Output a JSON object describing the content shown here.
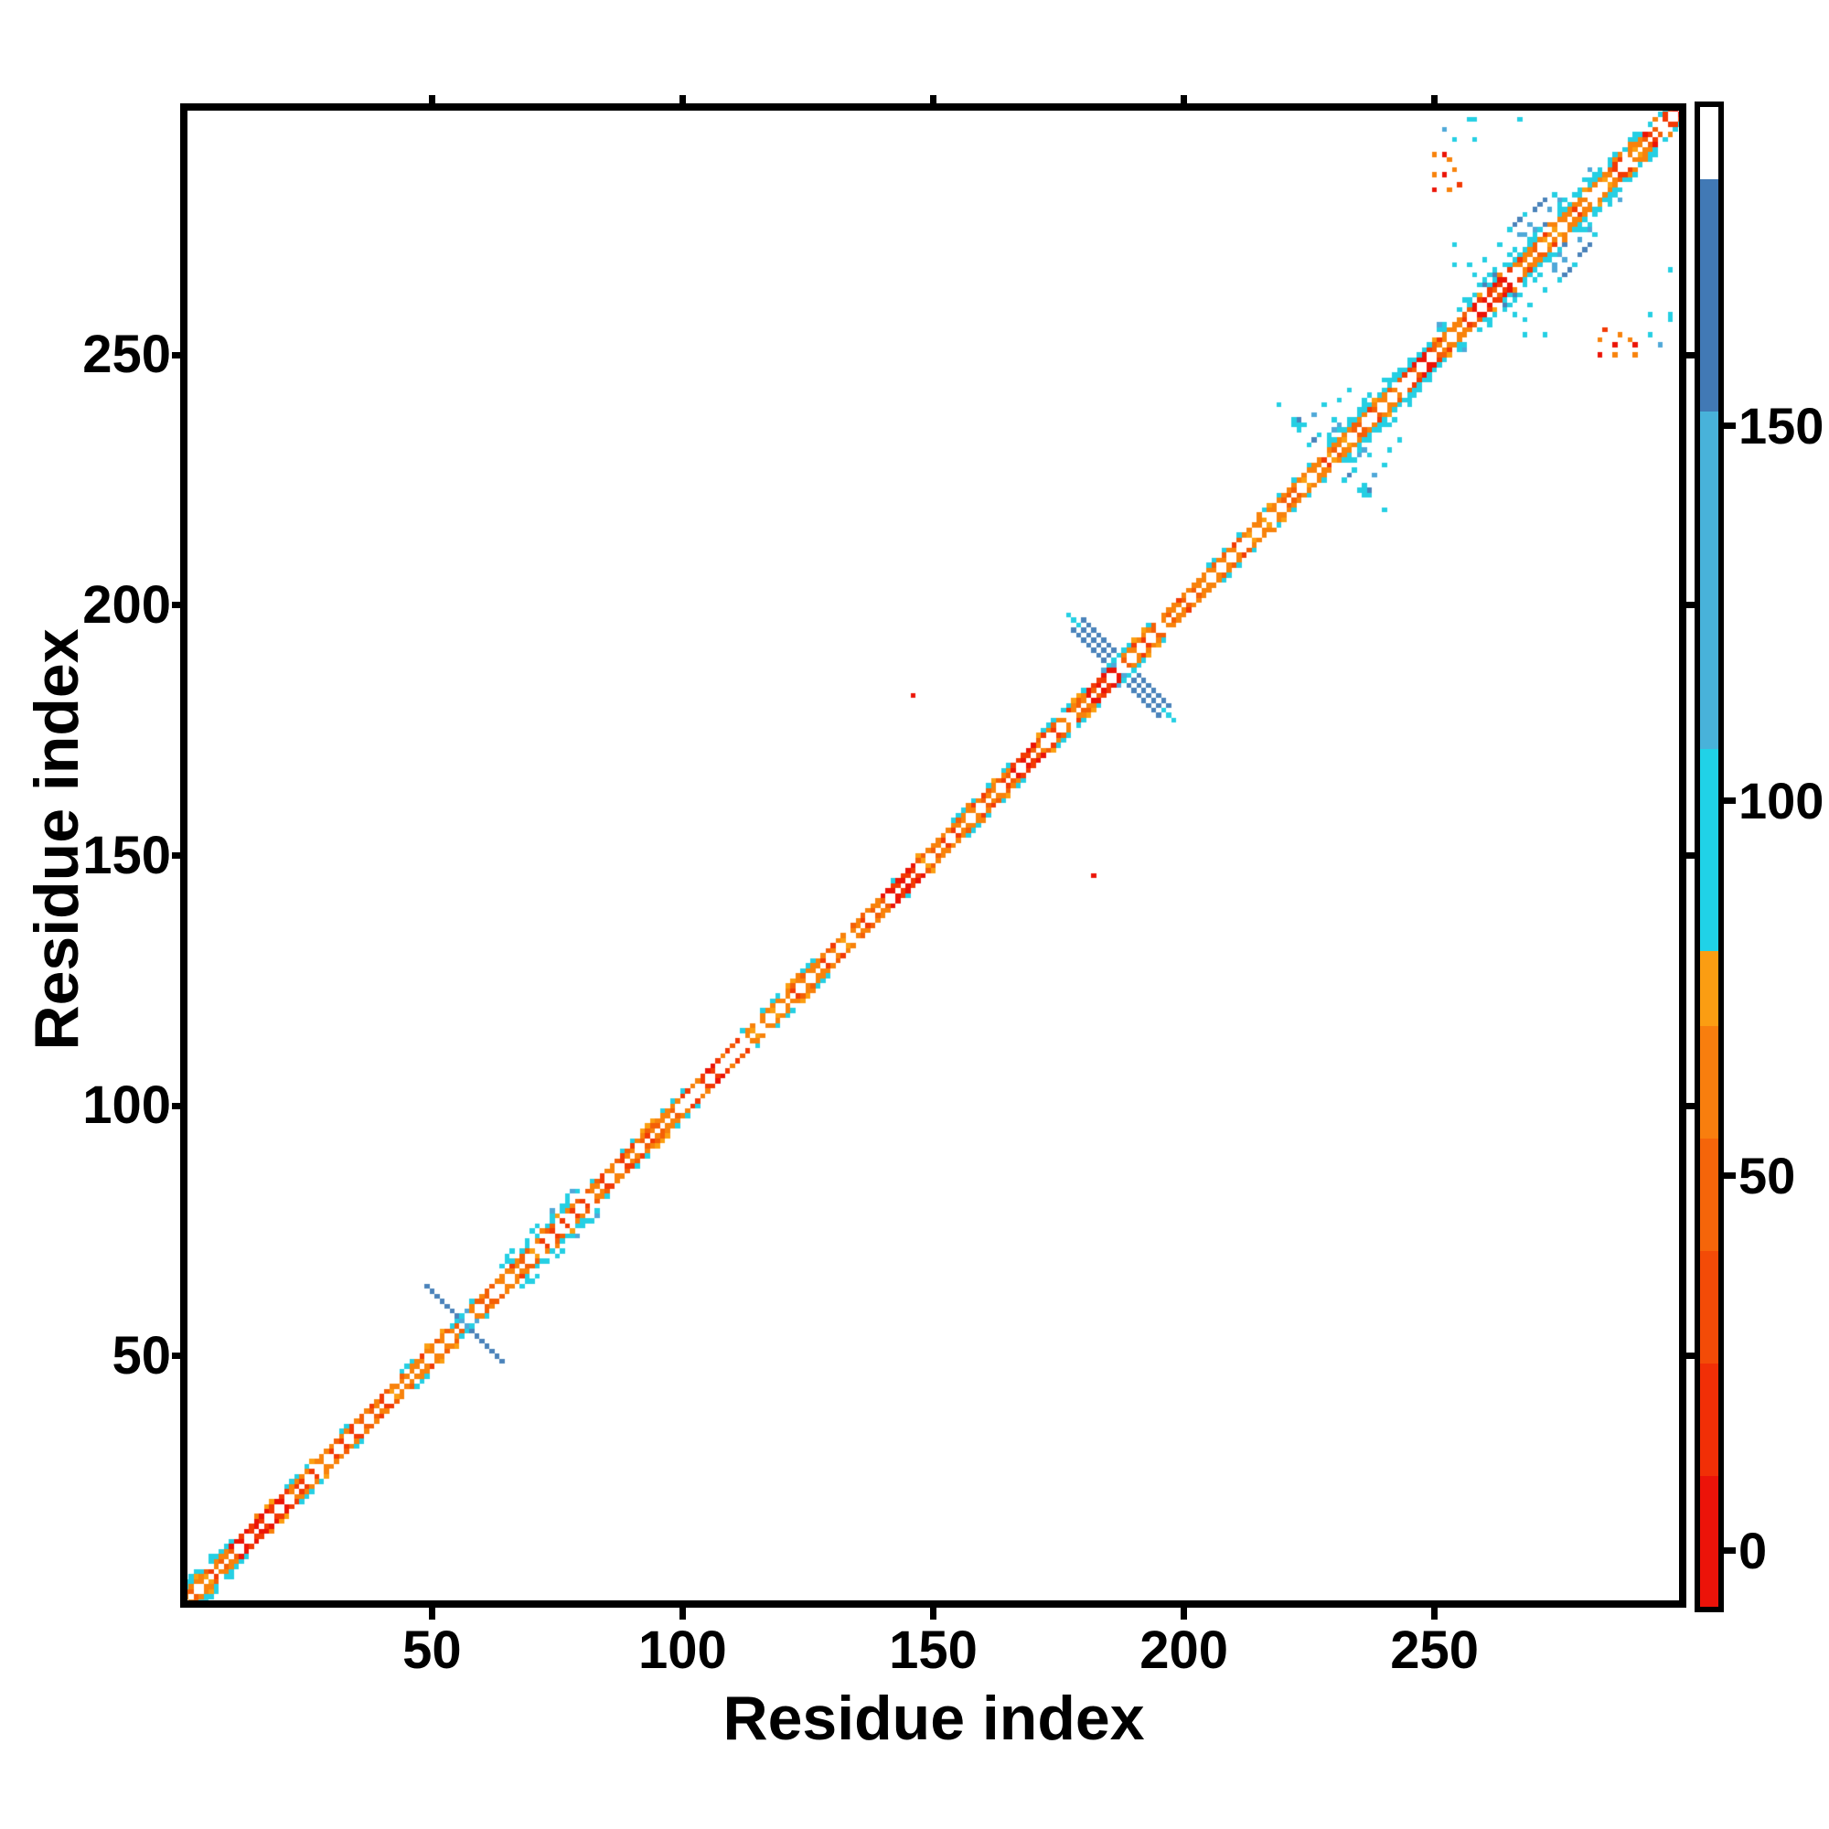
{
  "chart_data": {
    "type": "heatmap",
    "title": "",
    "xlabel": "Residue index",
    "ylabel": "Residue index",
    "x_ticks": [
      50,
      100,
      150,
      200,
      250
    ],
    "y_ticks": [
      50,
      100,
      150,
      200,
      250
    ],
    "x_range": [
      0.5,
      299.5
    ],
    "y_range": [
      0.5,
      299.5
    ],
    "n_residues": 299,
    "grid": false,
    "background": "#ffffff",
    "axis_color": "#000000",
    "palette": {
      "red": "#eb1407",
      "red2": "#f23a05",
      "orange": "#f45f07",
      "orange2": "#f8820c",
      "amber": "#fb9f12",
      "cyan": "#25cfe3",
      "sky": "#4fa8d8",
      "steel": "#4a82ba",
      "white": "#ffffff"
    },
    "colorbar": {
      "ticks": [
        0,
        50,
        100,
        150
      ],
      "value_range": [
        -7.5,
        192.5
      ],
      "position": "right",
      "segments": [
        {
          "from": -7.5,
          "to": 10,
          "color": "#ec1309"
        },
        {
          "from": 10,
          "to": 25,
          "color": "#f12f06"
        },
        {
          "from": 25,
          "to": 40,
          "color": "#f34b07"
        },
        {
          "from": 40,
          "to": 55,
          "color": "#f5650a"
        },
        {
          "from": 55,
          "to": 70,
          "color": "#f87e0e"
        },
        {
          "from": 70,
          "to": 80,
          "color": "#fb9d12"
        },
        {
          "from": 80,
          "to": 107,
          "color": "#20d2e7"
        },
        {
          "from": 107,
          "to": 152,
          "color": "#48b2da"
        },
        {
          "from": 152,
          "to": 183,
          "color": "#4179b5"
        },
        {
          "from": 183,
          "to": 192.5,
          "color": "#ffffff"
        }
      ]
    },
    "seed": 7,
    "diagonal_band_segments": [
      {
        "from": 1,
        "to": 10,
        "inner": "orange",
        "cyan": 1,
        "w": 4
      },
      {
        "from": 10,
        "to": 22,
        "inner": "red",
        "cyan": 0.4,
        "w": 3
      },
      {
        "from": 22,
        "to": 31,
        "inner": "orange",
        "cyan": 1,
        "w": 3
      },
      {
        "from": 31,
        "to": 43,
        "inner": "orange",
        "cyan": 0.2,
        "w": 2
      },
      {
        "from": 43,
        "to": 48,
        "inner": "orange",
        "cyan": 1,
        "w": 3
      },
      {
        "from": 48,
        "to": 55,
        "inner": "orange",
        "cyan": 0.2,
        "w": 2
      },
      {
        "from": 55,
        "to": 59,
        "inner": "orange",
        "cyan": 1,
        "w": 3
      },
      {
        "from": 59,
        "to": 64,
        "inner": "orange",
        "cyan": 0.2,
        "w": 2
      },
      {
        "from": 64,
        "to": 80,
        "inner": "orange",
        "cyan": 1,
        "w": 5
      },
      {
        "from": 80,
        "to": 92,
        "inner": "orange",
        "cyan": 0.3,
        "w": 2
      },
      {
        "from": 92,
        "to": 98,
        "inner": "orange",
        "cyan": 1,
        "w": 3
      },
      {
        "from": 98,
        "to": 104,
        "inner": "orange",
        "cyan": 0.3,
        "w": 2
      },
      {
        "from": 104,
        "to": 108,
        "inner": "red",
        "cyan": 0.2,
        "w": 2
      },
      {
        "from": 108,
        "to": 113,
        "inner": "orange",
        "cyan": 0.3,
        "w": 2
      },
      {
        "from": 113,
        "to": 120,
        "inner": "orange",
        "cyan": 0.8,
        "w": 3
      },
      {
        "from": 120,
        "to": 128,
        "inner": "orange",
        "cyan": 1,
        "w": 3
      },
      {
        "from": 128,
        "to": 140,
        "inner": "orange",
        "cyan": 0.25,
        "w": 2
      },
      {
        "from": 140,
        "to": 147,
        "inner": "red",
        "cyan": 0.3,
        "w": 2
      },
      {
        "from": 147,
        "to": 154,
        "inner": "orange",
        "cyan": 0.3,
        "w": 2
      },
      {
        "from": 154,
        "to": 166,
        "inner": "orange",
        "cyan": 1,
        "w": 3
      },
      {
        "from": 166,
        "to": 171,
        "inner": "red",
        "cyan": 0.3,
        "w": 2
      },
      {
        "from": 171,
        "to": 181,
        "inner": "orange",
        "cyan": 0.9,
        "w": 3
      },
      {
        "from": 181,
        "to": 187,
        "inner": "red",
        "cyan": 0.3,
        "w": 2
      },
      {
        "from": 187,
        "to": 193,
        "inner": "orange",
        "cyan": 1,
        "w": 3
      },
      {
        "from": 193,
        "to": 205,
        "inner": "orange",
        "cyan": 0.3,
        "w": 2
      },
      {
        "from": 205,
        "to": 213,
        "inner": "orange",
        "cyan": 0.8,
        "w": 3
      },
      {
        "from": 213,
        "to": 229,
        "inner": "orange",
        "cyan": 0.5,
        "w": 3
      },
      {
        "from": 229,
        "to": 244,
        "inner": "orange",
        "cyan": 1,
        "w": 5
      },
      {
        "from": 244,
        "to": 250,
        "inner": "red",
        "cyan": 1,
        "w": 4
      },
      {
        "from": 250,
        "to": 258,
        "inner": "orange",
        "cyan": 1,
        "w": 5
      },
      {
        "from": 258,
        "to": 266,
        "inner": "red",
        "cyan": 1,
        "w": 5,
        "steel": true
      },
      {
        "from": 266,
        "to": 282,
        "inner": "orange",
        "cyan": 1,
        "w": 6,
        "steel": true
      },
      {
        "from": 282,
        "to": 292,
        "inner": "orange",
        "cyan": 1,
        "w": 4
      },
      {
        "from": 292,
        "to": 300,
        "inner": "red",
        "cyan": 0.8,
        "w": 3
      }
    ],
    "anti_diagonal_features": [
      {
        "cx": 56,
        "cy": 57,
        "half": 7,
        "width": 1,
        "color": "steel",
        "skip": [
          -4,
          -1,
          0,
          1,
          4
        ],
        "tip_color": "steel",
        "tip_len": 0
      },
      {
        "cx": 187,
        "cy": 188,
        "half": 10,
        "width": 3,
        "color": "steel",
        "skip": [
          -1,
          0,
          1
        ],
        "tip_color": "cyan",
        "tip_len": 2
      }
    ],
    "off_diagonal_cells": [
      [
        55,
        57,
        "cyan"
      ],
      [
        56,
        58,
        "cyan"
      ],
      [
        54,
        56,
        "cyan"
      ],
      [
        57,
        59,
        "sky"
      ],
      [
        56,
        57,
        "sky"
      ],
      [
        185,
        188,
        "cyan"
      ],
      [
        186,
        189,
        "cyan"
      ],
      [
        184,
        187,
        "sky"
      ],
      [
        187,
        190,
        "cyan"
      ],
      [
        186,
        188,
        "sky"
      ],
      [
        146,
        182,
        "red"
      ],
      [
        219,
        240,
        "cyan"
      ],
      [
        222,
        237,
        "cyan"
      ],
      [
        223,
        237,
        "steel"
      ],
      [
        223,
        236,
        "cyan"
      ],
      [
        224,
        236,
        "cyan"
      ],
      [
        222,
        236,
        "cyan"
      ],
      [
        223,
        235,
        "cyan"
      ],
      [
        226,
        233,
        "steel"
      ],
      [
        227,
        234,
        "cyan"
      ],
      [
        225,
        232,
        "cyan"
      ],
      [
        230,
        237,
        "cyan"
      ],
      [
        228,
        240,
        "cyan"
      ],
      [
        231,
        241,
        "cyan"
      ],
      [
        233,
        243,
        "cyan"
      ],
      [
        226,
        238,
        "sky"
      ],
      [
        266,
        276,
        "steel"
      ],
      [
        267,
        277,
        "steel"
      ],
      [
        268,
        278,
        "cyan"
      ],
      [
        270,
        279,
        "steel"
      ],
      [
        271,
        280,
        "steel"
      ],
      [
        265,
        275,
        "cyan"
      ],
      [
        263,
        272,
        "cyan"
      ],
      [
        260,
        269,
        "cyan"
      ],
      [
        258,
        266,
        "cyan"
      ],
      [
        272,
        281,
        "steel"
      ],
      [
        274,
        282,
        "cyan"
      ],
      [
        269,
        276,
        "sky"
      ],
      [
        267,
        274,
        "sky"
      ],
      [
        250,
        290,
        "orange2"
      ],
      [
        252,
        290,
        "red"
      ],
      [
        253,
        289,
        "orange2"
      ],
      [
        250,
        286,
        "orange2"
      ],
      [
        252,
        286,
        "red"
      ],
      [
        254,
        287,
        "orange2"
      ],
      [
        250,
        283,
        "red"
      ],
      [
        253,
        283,
        "orange2"
      ],
      [
        255,
        284,
        "red2"
      ],
      [
        254,
        293,
        "cyan"
      ],
      [
        257,
        297,
        "cyan"
      ],
      [
        258,
        293,
        "cyan"
      ],
      [
        252,
        295,
        "sky"
      ],
      [
        258,
        297,
        "cyan"
      ],
      [
        267,
        297,
        "cyan"
      ],
      [
        257,
        268,
        "cyan"
      ],
      [
        254,
        268,
        "cyan"
      ],
      [
        254,
        272,
        "cyan"
      ]
    ]
  }
}
